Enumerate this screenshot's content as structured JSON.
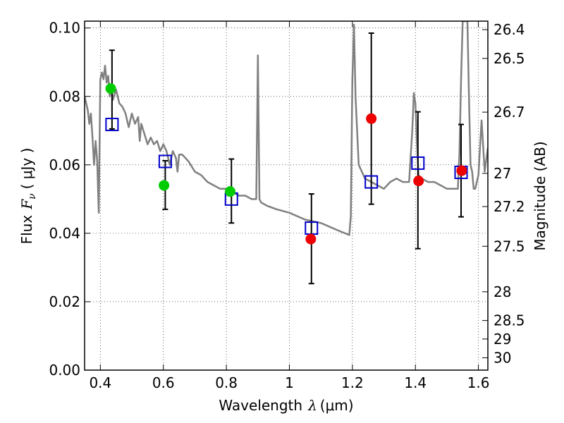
{
  "chart_data": {
    "type": "scatter",
    "xlabel": "Wavelength",
    "xlabel_symbol": "λ",
    "xlabel_unit": "(μm)",
    "ylabel": "Flux",
    "ylabel_symbol": "F",
    "ylabel_sub": "ν",
    "ylabel_unit": "( μJy )",
    "y2label": "Magnitude (AB)",
    "xlim": [
      0.35,
      1.63
    ],
    "ylim": [
      0.0,
      0.102
    ],
    "x_ticks": [
      0.4,
      0.6,
      0.8,
      1.0,
      1.2,
      1.4,
      1.6
    ],
    "x_tick_labels": [
      "0.4",
      "0.6",
      "0.8",
      "1",
      "1.2",
      "1.4",
      "1.6"
    ],
    "y_ticks": [
      0.0,
      0.02,
      0.04,
      0.06,
      0.08,
      0.1
    ],
    "y_tick_labels": [
      "0.00",
      "0.02",
      "0.04",
      "0.06",
      "0.08",
      "0.10"
    ],
    "y2_ticks": [
      {
        "flux": 0.0995,
        "label": "26.4"
      },
      {
        "flux": 0.0911,
        "label": "26.5"
      },
      {
        "flux": 0.0754,
        "label": "26.7"
      },
      {
        "flux": 0.0575,
        "label": "27"
      },
      {
        "flux": 0.0478,
        "label": "27.2"
      },
      {
        "flux": 0.0362,
        "label": "27.5"
      },
      {
        "flux": 0.0229,
        "label": "28"
      },
      {
        "flux": 0.0145,
        "label": "28.5"
      },
      {
        "flux": 0.0091,
        "label": "29"
      },
      {
        "flux": 0.0036,
        "label": "30"
      }
    ],
    "grid": true,
    "series": [
      {
        "kind": "line",
        "color": "#808080",
        "x": [
          0.35,
          0.36,
          0.365,
          0.37,
          0.375,
          0.38,
          0.385,
          0.39,
          0.395,
          0.4,
          0.405,
          0.41,
          0.415,
          0.42,
          0.425,
          0.43,
          0.435,
          0.44,
          0.45,
          0.46,
          0.47,
          0.48,
          0.485,
          0.49,
          0.5,
          0.51,
          0.52,
          0.525,
          0.53,
          0.54,
          0.55,
          0.56,
          0.57,
          0.58,
          0.59,
          0.6,
          0.61,
          0.62,
          0.63,
          0.64,
          0.645,
          0.65,
          0.66,
          0.67,
          0.68,
          0.7,
          0.72,
          0.74,
          0.76,
          0.78,
          0.8,
          0.82,
          0.84,
          0.86,
          0.88,
          0.895,
          0.9,
          0.905,
          0.91,
          0.93,
          0.96,
          1.0,
          1.05,
          1.1,
          1.15,
          1.19,
          1.195,
          1.2,
          1.205,
          1.21,
          1.22,
          1.24,
          1.26,
          1.28,
          1.3,
          1.32,
          1.34,
          1.36,
          1.38,
          1.39,
          1.395,
          1.4,
          1.405,
          1.41,
          1.42,
          1.44,
          1.46,
          1.48,
          1.5,
          1.52,
          1.535,
          1.54,
          1.545,
          1.55,
          1.555,
          1.56,
          1.565,
          1.57,
          1.575,
          1.58,
          1.585,
          1.59,
          1.6,
          1.61,
          1.62,
          1.63
        ],
        "y": [
          0.08,
          0.076,
          0.072,
          0.075,
          0.068,
          0.06,
          0.067,
          0.061,
          0.046,
          0.085,
          0.087,
          0.085,
          0.089,
          0.084,
          0.086,
          0.08,
          0.083,
          0.079,
          0.082,
          0.078,
          0.077,
          0.075,
          0.073,
          0.071,
          0.075,
          0.072,
          0.074,
          0.067,
          0.072,
          0.069,
          0.066,
          0.068,
          0.066,
          0.067,
          0.064,
          0.066,
          0.064,
          0.06,
          0.064,
          0.062,
          0.058,
          0.063,
          0.063,
          0.062,
          0.061,
          0.058,
          0.057,
          0.055,
          0.054,
          0.053,
          0.053,
          0.052,
          0.051,
          0.051,
          0.05,
          0.05,
          0.092,
          0.05,
          0.049,
          0.048,
          0.047,
          0.046,
          0.044,
          0.043,
          0.041,
          0.0395,
          0.045,
          0.085,
          0.101,
          0.08,
          0.06,
          0.056,
          0.055,
          0.054,
          0.053,
          0.055,
          0.056,
          0.055,
          0.055,
          0.07,
          0.081,
          0.078,
          0.066,
          0.057,
          0.056,
          0.055,
          0.055,
          0.054,
          0.053,
          0.053,
          0.053,
          0.064,
          0.085,
          0.102,
          0.102,
          0.102,
          0.102,
          0.08,
          0.06,
          0.058,
          0.053,
          0.053,
          0.057,
          0.073,
          0.058,
          0.065
        ]
      },
      {
        "kind": "errorbars",
        "color": "#000000",
        "points": [
          {
            "x": 0.437,
            "low": 0.0705,
            "high": 0.0935
          },
          {
            "x": 0.606,
            "low": 0.047,
            "high": 0.0612
          },
          {
            "x": 0.816,
            "low": 0.043,
            "high": 0.0617
          },
          {
            "x": 1.07,
            "low": 0.0253,
            "high": 0.0515
          },
          {
            "x": 1.26,
            "low": 0.0485,
            "high": 0.0985
          },
          {
            "x": 1.408,
            "low": 0.0355,
            "high": 0.0755
          },
          {
            "x": 1.545,
            "low": 0.0448,
            "high": 0.0718
          }
        ]
      },
      {
        "kind": "markers",
        "marker": "square-open",
        "color": "#0000cc",
        "points": [
          {
            "x": 0.437,
            "y": 0.0718
          },
          {
            "x": 0.606,
            "y": 0.061
          },
          {
            "x": 0.816,
            "y": 0.05
          },
          {
            "x": 1.07,
            "y": 0.0415
          },
          {
            "x": 1.26,
            "y": 0.055
          },
          {
            "x": 1.408,
            "y": 0.0605
          },
          {
            "x": 1.545,
            "y": 0.0578
          }
        ]
      },
      {
        "kind": "markers",
        "marker": "circle",
        "color": "#00cc00",
        "points": [
          {
            "x": 0.433,
            "y": 0.0823
          },
          {
            "x": 0.602,
            "y": 0.054
          },
          {
            "x": 0.812,
            "y": 0.0522
          }
        ]
      },
      {
        "kind": "markers",
        "marker": "circle",
        "color": "#ee0000",
        "points": [
          {
            "x": 1.068,
            "y": 0.0383
          },
          {
            "x": 1.26,
            "y": 0.0735
          },
          {
            "x": 1.41,
            "y": 0.0553
          },
          {
            "x": 1.547,
            "y": 0.0583
          }
        ]
      }
    ]
  }
}
